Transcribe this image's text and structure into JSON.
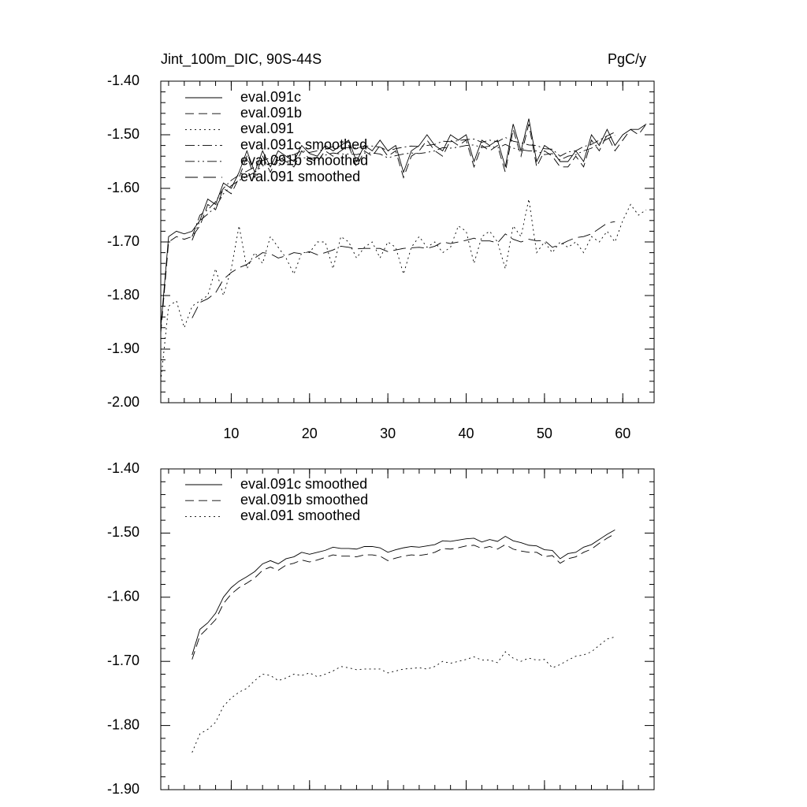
{
  "chart_data": [
    {
      "type": "line",
      "title": "Jint_100m_DIC, 90S-44S",
      "units": "PgC/y",
      "x": [
        1,
        2,
        3,
        4,
        5,
        6,
        7,
        8,
        9,
        10,
        11,
        12,
        13,
        14,
        15,
        16,
        17,
        18,
        19,
        20,
        21,
        22,
        23,
        24,
        25,
        26,
        27,
        28,
        29,
        30,
        31,
        32,
        33,
        34,
        35,
        36,
        37,
        38,
        39,
        40,
        41,
        42,
        43,
        44,
        45,
        46,
        47,
        48,
        49,
        50,
        51,
        52,
        53,
        54,
        55,
        56,
        57,
        58,
        59,
        60,
        61,
        62,
        63
      ],
      "xlim": [
        1,
        64
      ],
      "xticks": [
        10,
        20,
        30,
        40,
        50,
        60
      ],
      "show_xtick_labels": true,
      "ylim": [
        -2.0,
        -1.4
      ],
      "yticks": [
        {
          "value": -2.0,
          "label": "-2.00"
        },
        {
          "value": -1.9,
          "label": "-1.90"
        },
        {
          "value": -1.8,
          "label": "-1.80"
        },
        {
          "value": -1.7,
          "label": "-1.70"
        },
        {
          "value": -1.6,
          "label": "-1.60"
        },
        {
          "value": -1.5,
          "label": "-1.50"
        },
        {
          "value": -1.4,
          "label": "-1.40"
        }
      ],
      "series": [
        {
          "name": "eval.091c",
          "color": "#000000",
          "dash": "solid",
          "values": [
            -1.86,
            -1.69,
            -1.68,
            -1.685,
            -1.68,
            -1.66,
            -1.62,
            -1.63,
            -1.59,
            -1.6,
            -1.57,
            -1.53,
            -1.57,
            -1.53,
            -1.56,
            -1.53,
            -1.54,
            -1.55,
            -1.52,
            -1.535,
            -1.54,
            -1.52,
            -1.53,
            -1.52,
            -1.51,
            -1.55,
            -1.52,
            -1.53,
            -1.51,
            -1.53,
            -1.52,
            -1.57,
            -1.53,
            -1.52,
            -1.5,
            -1.52,
            -1.53,
            -1.5,
            -1.51,
            -1.5,
            -1.55,
            -1.51,
            -1.52,
            -1.51,
            -1.56,
            -1.48,
            -1.53,
            -1.47,
            -1.55,
            -1.52,
            -1.53,
            -1.55,
            -1.55,
            -1.53,
            -1.55,
            -1.5,
            -1.52,
            -1.49,
            -1.52,
            -1.5,
            -1.49,
            -1.49,
            -1.48
          ]
        },
        {
          "name": "eval.091b",
          "color": "#000000",
          "dash": "dashed",
          "values": [
            -1.87,
            -1.7,
            -1.69,
            -1.695,
            -1.69,
            -1.67,
            -1.63,
            -1.64,
            -1.6,
            -1.61,
            -1.58,
            -1.54,
            -1.58,
            -1.54,
            -1.57,
            -1.54,
            -1.55,
            -1.56,
            -1.53,
            -1.545,
            -1.55,
            -1.53,
            -1.54,
            -1.53,
            -1.52,
            -1.56,
            -1.53,
            -1.54,
            -1.52,
            -1.54,
            -1.53,
            -1.58,
            -1.54,
            -1.53,
            -1.51,
            -1.53,
            -1.54,
            -1.51,
            -1.52,
            -1.51,
            -1.56,
            -1.52,
            -1.53,
            -1.52,
            -1.57,
            -1.49,
            -1.54,
            -1.48,
            -1.56,
            -1.53,
            -1.54,
            -1.56,
            -1.56,
            -1.54,
            -1.56,
            -1.51,
            -1.53,
            -1.5,
            -1.53,
            -1.51,
            -1.49,
            -1.5,
            -1.48
          ]
        },
        {
          "name": "eval.091",
          "color": "#000000",
          "dash": "dotted",
          "values": [
            -1.96,
            -1.82,
            -1.81,
            -1.86,
            -1.82,
            -1.81,
            -1.8,
            -1.75,
            -1.8,
            -1.75,
            -1.67,
            -1.75,
            -1.72,
            -1.74,
            -1.69,
            -1.71,
            -1.73,
            -1.76,
            -1.72,
            -1.72,
            -1.7,
            -1.7,
            -1.75,
            -1.69,
            -1.7,
            -1.73,
            -1.71,
            -1.7,
            -1.73,
            -1.7,
            -1.71,
            -1.76,
            -1.71,
            -1.69,
            -1.71,
            -1.7,
            -1.72,
            -1.71,
            -1.67,
            -1.68,
            -1.74,
            -1.69,
            -1.68,
            -1.7,
            -1.75,
            -1.67,
            -1.69,
            -1.62,
            -1.72,
            -1.7,
            -1.72,
            -1.7,
            -1.71,
            -1.7,
            -1.72,
            -1.69,
            -1.7,
            -1.68,
            -1.7,
            -1.66,
            -1.63,
            -1.65,
            -1.64
          ]
        },
        {
          "name": "eval.091c smoothed",
          "color": "#000000",
          "dash": "dashdot",
          "values": [
            null,
            null,
            null,
            null,
            -1.69,
            -1.65,
            -1.64,
            -1.625,
            -1.6,
            -1.585,
            -1.575,
            -1.568,
            -1.56,
            -1.548,
            -1.543,
            -1.548,
            -1.54,
            -1.537,
            -1.53,
            -1.533,
            -1.53,
            -1.527,
            -1.522,
            -1.524,
            -1.524,
            -1.525,
            -1.521,
            -1.521,
            -1.523,
            -1.53,
            -1.526,
            -1.523,
            -1.521,
            -1.522,
            -1.52,
            -1.518,
            -1.512,
            -1.513,
            -1.511,
            -1.509,
            -1.508,
            -1.514,
            -1.51,
            -1.513,
            -1.505,
            -1.512,
            -1.515,
            -1.519,
            -1.52,
            -1.526,
            -1.527,
            -1.54,
            -1.532,
            -1.53,
            -1.522,
            -1.518,
            -1.51,
            -1.502,
            -1.495,
            null,
            null,
            null,
            null
          ]
        },
        {
          "name": "eval.091b smoothed",
          "color": "#000000",
          "dash": "dashdotdot",
          "values": [
            null,
            null,
            null,
            null,
            -1.697,
            -1.66,
            -1.648,
            -1.635,
            -1.61,
            -1.595,
            -1.585,
            -1.578,
            -1.57,
            -1.558,
            -1.553,
            -1.558,
            -1.55,
            -1.547,
            -1.542,
            -1.545,
            -1.542,
            -1.538,
            -1.534,
            -1.536,
            -1.536,
            -1.537,
            -1.534,
            -1.534,
            -1.536,
            -1.543,
            -1.539,
            -1.536,
            -1.534,
            -1.535,
            -1.533,
            -1.53,
            -1.524,
            -1.525,
            -1.523,
            -1.52,
            -1.519,
            -1.524,
            -1.521,
            -1.525,
            -1.518,
            -1.525,
            -1.528,
            -1.53,
            -1.53,
            -1.537,
            -1.535,
            -1.547,
            -1.54,
            -1.537,
            -1.53,
            -1.525,
            -1.516,
            -1.508,
            -1.501,
            null,
            null,
            null,
            null
          ]
        },
        {
          "name": "eval.091 smoothed",
          "color": "#000000",
          "dash": "longdash",
          "values": [
            null,
            null,
            null,
            null,
            -1.842,
            -1.813,
            -1.806,
            -1.795,
            -1.77,
            -1.757,
            -1.748,
            -1.742,
            -1.73,
            -1.72,
            -1.722,
            -1.73,
            -1.726,
            -1.72,
            -1.722,
            -1.718,
            -1.724,
            -1.72,
            -1.715,
            -1.708,
            -1.71,
            -1.713,
            -1.712,
            -1.712,
            -1.712,
            -1.718,
            -1.715,
            -1.712,
            -1.711,
            -1.71,
            -1.712,
            -1.708,
            -1.7,
            -1.703,
            -1.7,
            -1.697,
            -1.693,
            -1.698,
            -1.698,
            -1.702,
            -1.685,
            -1.695,
            -1.7,
            -1.695,
            -1.698,
            -1.697,
            -1.71,
            -1.705,
            -1.698,
            -1.692,
            -1.69,
            -1.685,
            -1.675,
            -1.665,
            -1.662,
            null,
            null,
            null,
            null
          ]
        }
      ]
    },
    {
      "type": "line",
      "x": [
        1,
        2,
        3,
        4,
        5,
        6,
        7,
        8,
        9,
        10,
        11,
        12,
        13,
        14,
        15,
        16,
        17,
        18,
        19,
        20,
        21,
        22,
        23,
        24,
        25,
        26,
        27,
        28,
        29,
        30,
        31,
        32,
        33,
        34,
        35,
        36,
        37,
        38,
        39,
        40,
        41,
        42,
        43,
        44,
        45,
        46,
        47,
        48,
        49,
        50,
        51,
        52,
        53,
        54,
        55,
        56,
        57,
        58,
        59,
        60,
        61,
        62,
        63
      ],
      "xlim": [
        1,
        64
      ],
      "xticks": [
        10,
        20,
        30,
        40,
        50,
        60
      ],
      "show_xtick_labels": false,
      "ylim": [
        -1.9,
        -1.4
      ],
      "yticks": [
        {
          "value": -1.9,
          "label": "-1.90"
        },
        {
          "value": -1.8,
          "label": "-1.80"
        },
        {
          "value": -1.7,
          "label": "-1.70"
        },
        {
          "value": -1.6,
          "label": "-1.60"
        },
        {
          "value": -1.5,
          "label": "-1.50"
        },
        {
          "value": -1.4,
          "label": "-1.40"
        }
      ],
      "series": [
        {
          "name": "eval.091c smoothed",
          "color": "#000000",
          "dash": "solid",
          "values": [
            null,
            null,
            null,
            null,
            -1.69,
            -1.65,
            -1.64,
            -1.625,
            -1.6,
            -1.585,
            -1.575,
            -1.568,
            -1.56,
            -1.548,
            -1.543,
            -1.548,
            -1.54,
            -1.537,
            -1.53,
            -1.533,
            -1.53,
            -1.527,
            -1.522,
            -1.524,
            -1.524,
            -1.525,
            -1.521,
            -1.521,
            -1.523,
            -1.53,
            -1.526,
            -1.523,
            -1.521,
            -1.522,
            -1.52,
            -1.518,
            -1.512,
            -1.513,
            -1.511,
            -1.509,
            -1.508,
            -1.514,
            -1.51,
            -1.513,
            -1.505,
            -1.512,
            -1.515,
            -1.519,
            -1.52,
            -1.526,
            -1.527,
            -1.54,
            -1.532,
            -1.53,
            -1.522,
            -1.518,
            -1.51,
            -1.502,
            -1.495,
            null,
            null,
            null,
            null
          ]
        },
        {
          "name": "eval.091b smoothed",
          "color": "#000000",
          "dash": "dashed",
          "values": [
            null,
            null,
            null,
            null,
            -1.697,
            -1.66,
            -1.648,
            -1.635,
            -1.61,
            -1.595,
            -1.585,
            -1.578,
            -1.57,
            -1.558,
            -1.553,
            -1.558,
            -1.55,
            -1.547,
            -1.542,
            -1.545,
            -1.542,
            -1.538,
            -1.534,
            -1.536,
            -1.536,
            -1.537,
            -1.534,
            -1.534,
            -1.536,
            -1.543,
            -1.539,
            -1.536,
            -1.534,
            -1.535,
            -1.533,
            -1.53,
            -1.524,
            -1.525,
            -1.523,
            -1.52,
            -1.519,
            -1.524,
            -1.521,
            -1.525,
            -1.518,
            -1.525,
            -1.528,
            -1.53,
            -1.53,
            -1.537,
            -1.535,
            -1.547,
            -1.54,
            -1.537,
            -1.53,
            -1.525,
            -1.516,
            -1.508,
            -1.501,
            null,
            null,
            null,
            null
          ]
        },
        {
          "name": "eval.091 smoothed",
          "color": "#000000",
          "dash": "dotted",
          "values": [
            null,
            null,
            null,
            null,
            -1.842,
            -1.813,
            -1.806,
            -1.795,
            -1.77,
            -1.757,
            -1.748,
            -1.742,
            -1.73,
            -1.72,
            -1.722,
            -1.73,
            -1.726,
            -1.72,
            -1.722,
            -1.718,
            -1.724,
            -1.72,
            -1.715,
            -1.708,
            -1.71,
            -1.713,
            -1.712,
            -1.712,
            -1.712,
            -1.718,
            -1.715,
            -1.712,
            -1.711,
            -1.71,
            -1.712,
            -1.708,
            -1.7,
            -1.703,
            -1.7,
            -1.697,
            -1.693,
            -1.698,
            -1.698,
            -1.702,
            -1.685,
            -1.695,
            -1.7,
            -1.695,
            -1.698,
            -1.697,
            -1.71,
            -1.705,
            -1.698,
            -1.692,
            -1.69,
            -1.685,
            -1.675,
            -1.665,
            -1.662,
            null,
            null,
            null,
            null
          ]
        }
      ]
    }
  ]
}
